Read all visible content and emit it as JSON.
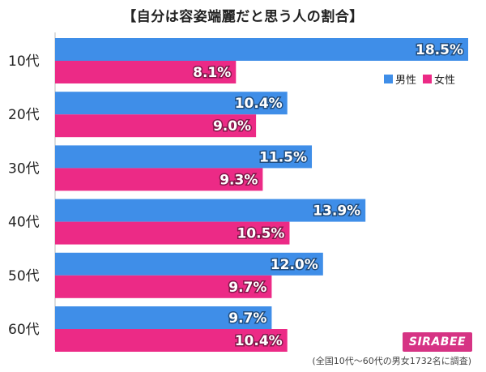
{
  "chart_data": {
    "type": "bar",
    "orientation": "horizontal",
    "title": "【自分は容姿端麗だと思う人の割合】",
    "categories": [
      "10代",
      "20代",
      "30代",
      "40代",
      "50代",
      "60代"
    ],
    "series": [
      {
        "name": "男性",
        "color": "#3f8ee8",
        "values": [
          18.5,
          10.4,
          11.5,
          13.9,
          12.0,
          9.7
        ],
        "labels": [
          "18.5%",
          "10.4%",
          "11.5%",
          "13.9%",
          "12.0%",
          "9.7%"
        ]
      },
      {
        "name": "女性",
        "color": "#ec2a86",
        "values": [
          8.1,
          9.0,
          9.3,
          10.5,
          9.7,
          10.4
        ],
        "labels": [
          "8.1%",
          "9.0%",
          "9.3%",
          "10.5%",
          "9.7%",
          "10.4%"
        ]
      }
    ],
    "xlim": [
      0,
      18.5
    ],
    "legend_position": "top-right",
    "grid": false
  },
  "footnote": "(全国10代〜60代の男女1732名に調査)",
  "logo": {
    "text": "SIRABEE",
    "color": "#d63384"
  }
}
